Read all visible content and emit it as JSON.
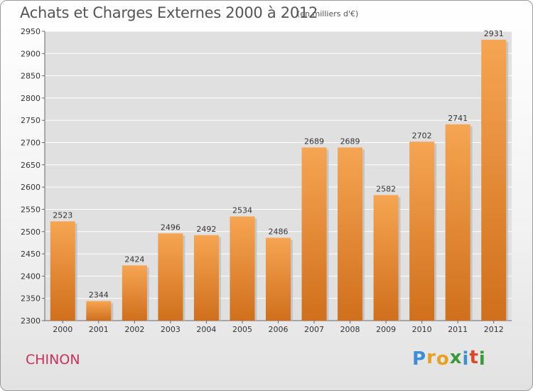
{
  "title": "Achats et Charges Externes 2000 à 2012",
  "unit_note": "(en milliers d'€)",
  "place_name": "CHINON",
  "logo": {
    "text": "Proxiti",
    "letters": [
      {
        "char": "P",
        "color": "#3a8fd6"
      },
      {
        "char": "r",
        "color": "#e8a020"
      },
      {
        "char": "o",
        "color": "#e8a020"
      },
      {
        "char": "x",
        "color": "#3a9a3a"
      },
      {
        "char": "i",
        "color": "#3a8fd6"
      },
      {
        "char": "t",
        "color": "#d94a2a"
      },
      {
        "char": "i",
        "color": "#3a9a3a"
      }
    ]
  },
  "colors": {
    "bar_top": "#f6a552",
    "bar_bottom": "#d06f1c",
    "bar_shadow": "#b9b9b9",
    "grid": "#ffffff",
    "plot_bg": "#e0e0e0"
  },
  "chart_data": {
    "type": "bar",
    "title": "Achats et Charges Externes 2000 à 2012",
    "xlabel": "",
    "ylabel": "",
    "categories": [
      "2000",
      "2001",
      "2002",
      "2003",
      "2004",
      "2005",
      "2006",
      "2007",
      "2008",
      "2009",
      "2010",
      "2011",
      "2012"
    ],
    "values": [
      2523,
      2344,
      2424,
      2496,
      2492,
      2534,
      2486,
      2689,
      2689,
      2582,
      2702,
      2741,
      2931
    ],
    "ylim": [
      2300,
      2950
    ],
    "yticks": [
      2300,
      2350,
      2400,
      2450,
      2500,
      2550,
      2600,
      2650,
      2700,
      2750,
      2800,
      2850,
      2900,
      2950
    ],
    "grid": true,
    "legend": "none"
  }
}
